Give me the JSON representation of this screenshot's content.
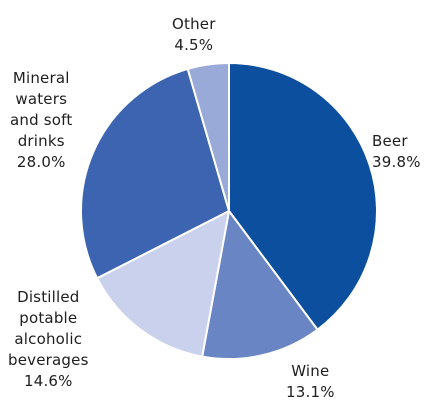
{
  "chart_data": {
    "type": "pie",
    "start": "12 o'clock",
    "direction": "clockwise",
    "slices": [
      {
        "label_lines": [
          "Beer"
        ],
        "value": 39.8,
        "value_text": "39.8%",
        "color": "#0b4f9e"
      },
      {
        "label_lines": [
          "Wine"
        ],
        "value": 13.1,
        "value_text": "13.1%",
        "color": "#6a85c3"
      },
      {
        "label_lines": [
          "Distilled",
          "potable",
          "alcoholic",
          "beverages"
        ],
        "value": 14.6,
        "value_text": "14.6%",
        "color": "#c9d1ec"
      },
      {
        "label_lines": [
          "Mineral",
          "waters",
          "and soft",
          "drinks"
        ],
        "value": 28.0,
        "value_text": "28.0%",
        "color": "#3d64b0"
      },
      {
        "label_lines": [
          "Other"
        ],
        "value": 4.5,
        "value_text": "4.5%",
        "color": "#9aaad8"
      }
    ]
  }
}
